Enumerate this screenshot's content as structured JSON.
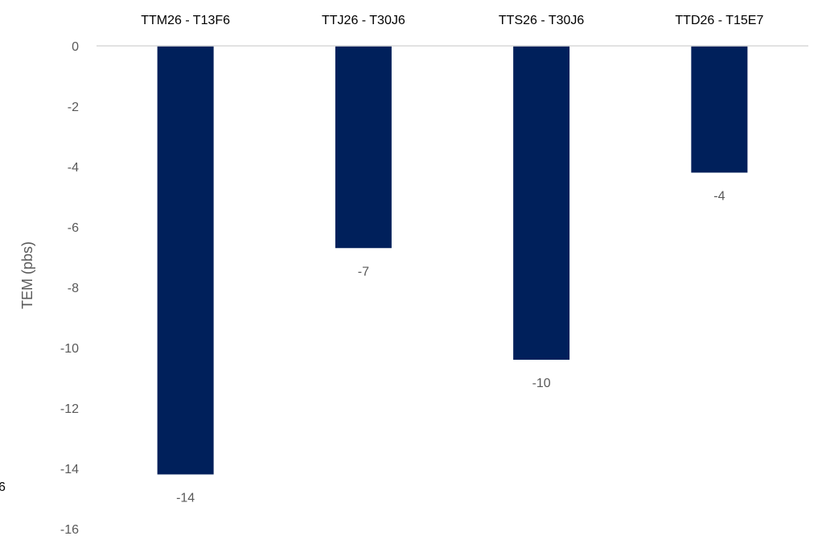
{
  "chart_data": {
    "type": "bar",
    "categories": [
      "TTM26 - T13F6",
      "TTJ26 - T30J6",
      "TTS26 - T30J6",
      "TTD26 - T15E7"
    ],
    "values": [
      -14.2,
      -6.7,
      -10.4,
      -4.2
    ],
    "data_labels": [
      "-14",
      "-7",
      "-10",
      "-4"
    ],
    "title": "",
    "xlabel": "",
    "ylabel": "TEM (pbs)",
    "ylim": [
      -16,
      0
    ],
    "yticks": [
      0,
      -2,
      -4,
      -6,
      -8,
      -10,
      -12,
      -14,
      -16
    ],
    "category_axis_position": "top",
    "grid": false,
    "legend": "none",
    "bar_color": "#00205B",
    "axis_line_color": "#D9D9D9",
    "text_color": "#595959"
  },
  "stray_text": "6"
}
